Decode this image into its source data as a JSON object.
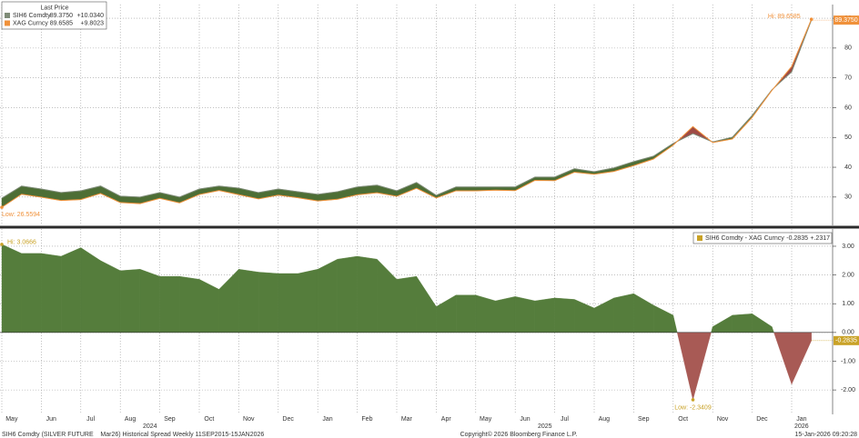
{
  "chart_data": [
    {
      "type": "line",
      "legend": {
        "title": "Last Price",
        "position": "upper left"
      },
      "series": [
        {
          "name": "SIH6 Comdty",
          "color": "#7f8c78",
          "last": "89.3750",
          "change": "+10.0340",
          "values": [
            29.626,
            33.7,
            32.7,
            31.5,
            32.1,
            33.7,
            30.3,
            30.0,
            31.5,
            30.0,
            32.7,
            33.7,
            33.0,
            31.5,
            32.7,
            31.8,
            30.9,
            31.8,
            33.4,
            34.0,
            32.1,
            34.9,
            30.6,
            33.4,
            33.4,
            33.4,
            33.4,
            36.7,
            36.7,
            39.5,
            38.5,
            39.8,
            41.9,
            43.7,
            48.0,
            51.3,
            48.5,
            50.1,
            57.4,
            66.0,
            72.0,
            89.375
          ]
        },
        {
          "name": "XAG Curncy",
          "color": "#f0913a",
          "last": "89.6585",
          "change": "+9.8023",
          "values": [
            26.5594,
            30.95,
            29.95,
            28.85,
            29.15,
            31.2,
            28.15,
            27.8,
            29.55,
            28.05,
            30.85,
            32.2,
            30.8,
            29.4,
            30.65,
            29.75,
            28.7,
            29.25,
            30.75,
            31.45,
            30.25,
            32.95,
            29.7,
            32.1,
            32.1,
            32.3,
            32.15,
            35.6,
            35.5,
            38.35,
            37.65,
            38.6,
            40.55,
            42.75,
            47.4,
            53.64,
            48.3,
            49.5,
            56.75,
            65.8,
            73.8,
            89.6585
          ]
        }
      ],
      "band_colors": {
        "above": "#4d6e35",
        "below": "#9e4a45"
      },
      "ylim": [
        20.5,
        94.6
      ],
      "yticks": [
        30,
        40,
        50,
        60,
        70,
        80,
        90
      ],
      "grid": true,
      "hi_label": "Hi: 89.6585",
      "low_label": "Low: 26.5594",
      "last_tag": "89.3750"
    },
    {
      "type": "area",
      "legend": {
        "position": "upper right"
      },
      "series": [
        {
          "name": "SIH6 Comdty - XAG Curncy",
          "color": "#c9a227",
          "last": "-0.2835",
          "change": "+.2317",
          "values": [
            3.0666,
            2.75,
            2.75,
            2.65,
            2.95,
            2.5,
            2.15,
            2.2,
            1.95,
            1.95,
            1.85,
            1.5,
            2.2,
            2.1,
            2.05,
            2.05,
            2.2,
            2.55,
            2.65,
            2.55,
            1.85,
            1.95,
            0.9,
            1.3,
            1.3,
            1.1,
            1.25,
            1.1,
            1.2,
            1.15,
            0.85,
            1.2,
            1.35,
            0.95,
            0.6,
            -2.3409,
            0.2,
            0.6,
            0.65,
            0.2,
            -1.8,
            -0.2835
          ]
        }
      ],
      "colors": {
        "positive": "#557d3c",
        "negative": "#a85a55"
      },
      "categories": [
        "May",
        null,
        "Jun",
        null,
        "Jul",
        null,
        "Aug",
        null,
        "Sep",
        null,
        "Oct",
        null,
        "Nov",
        null,
        "Dec",
        null,
        "Jan",
        null,
        "Feb",
        null,
        "Mar",
        null,
        "Apr",
        null,
        "May",
        null,
        "Jun",
        null,
        "Jul",
        null,
        "Aug",
        null,
        "Sep",
        null,
        "Oct",
        null,
        "Nov",
        null,
        "Dec",
        null,
        "Jan",
        null
      ],
      "year_labels": [
        "2024",
        "2025",
        "2026"
      ],
      "ylim": [
        -2.85,
        3.6
      ],
      "yticks": [
        {
          "value": 3,
          "label": "3.00"
        },
        {
          "value": 2,
          "label": "2.00"
        },
        {
          "value": 1,
          "label": "1.00"
        },
        {
          "value": 0,
          "label": "0.00"
        },
        {
          "value": -1,
          "label": "-1.00"
        },
        {
          "value": -2,
          "label": "-2.00"
        }
      ],
      "grid": true,
      "hi_label": "Hi: 3.0666",
      "low_label": "Low: -2.3409",
      "last_tag": "-0.2835"
    }
  ],
  "footer": {
    "left": "SIH6 Comdty (SILVER FUTURE    Mar26) Historical Spread Weekly 11SEP2015-15JAN2026",
    "center": "Copyright© 2026 Bloomberg Finance L.P.",
    "right": "15-Jan-2026 09:20:28"
  }
}
